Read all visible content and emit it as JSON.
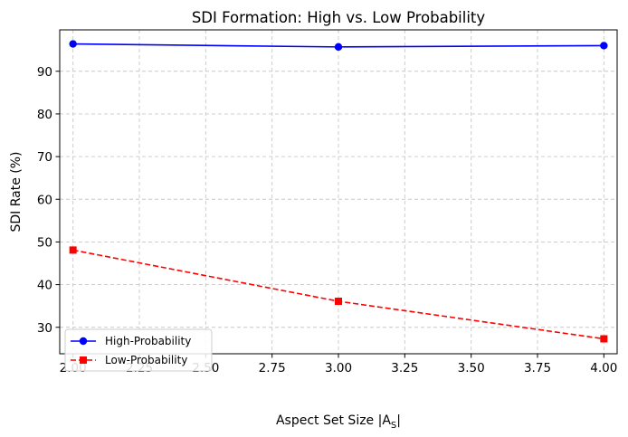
{
  "chart_data": {
    "type": "line",
    "title": "SDI Formation: High vs. Low Probability",
    "xlabel": "Aspect Set Size |A",
    "xlabel_sub": "S",
    "xlabel_suffix": "|",
    "ylabel": "SDI Rate (%)",
    "x": [
      2.0,
      3.0,
      4.0
    ],
    "xlim": [
      1.95,
      4.05
    ],
    "ylim": [
      23.8,
      99.7
    ],
    "xticks": [
      2.0,
      2.25,
      2.5,
      2.75,
      3.0,
      3.25,
      3.5,
      3.75,
      4.0
    ],
    "xtick_labels": [
      "2.00",
      "2.25",
      "2.50",
      "2.75",
      "3.00",
      "3.25",
      "3.50",
      "3.75",
      "4.00"
    ],
    "yticks": [
      30,
      40,
      50,
      60,
      70,
      80,
      90
    ],
    "ytick_labels": [
      "30",
      "40",
      "50",
      "60",
      "70",
      "80",
      "90"
    ],
    "grid": true,
    "legend_position": "lower-left",
    "series": [
      {
        "name": "High-Probability",
        "values": [
          96.4,
          95.7,
          96.0
        ],
        "color": "#0000ff",
        "marker": "circle",
        "linestyle": "solid"
      },
      {
        "name": "Low-Probability",
        "values": [
          48.1,
          36.1,
          27.3
        ],
        "color": "#ff0000",
        "marker": "square",
        "linestyle": "dashed"
      }
    ]
  }
}
